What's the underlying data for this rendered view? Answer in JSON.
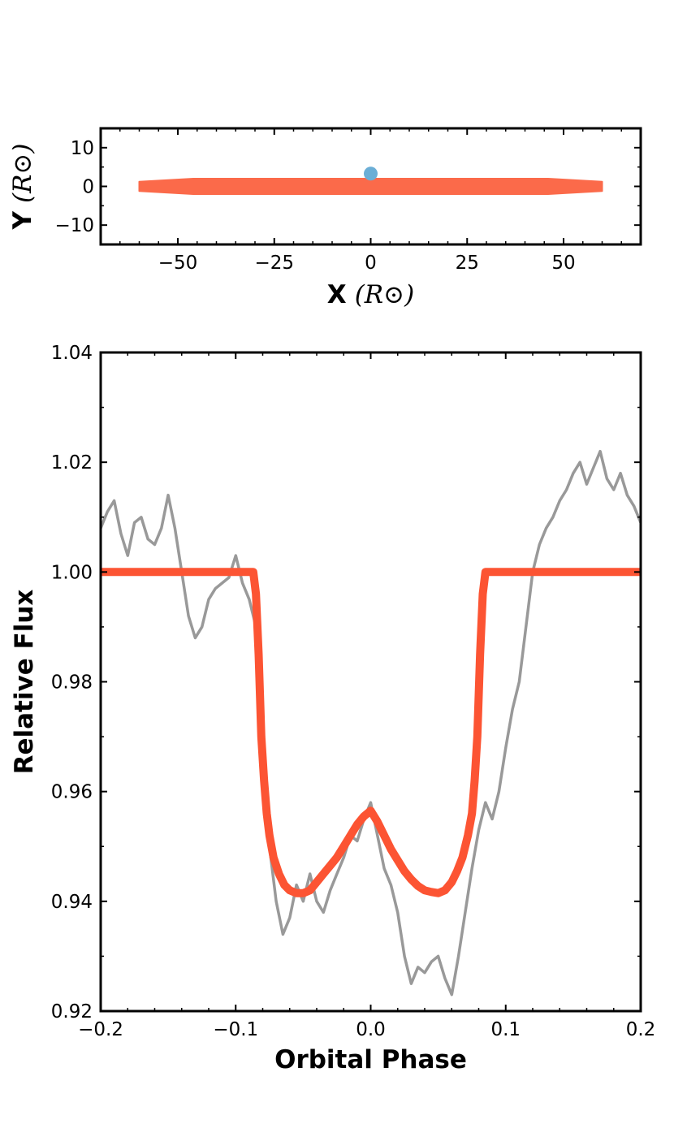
{
  "chart_data": [
    {
      "type": "scatter",
      "xlabel": "X",
      "xlabel_unit": "(R⊙)",
      "ylabel": "Y",
      "ylabel_unit": "(R⊙)",
      "xlim": [
        -70,
        70
      ],
      "ylim": [
        -15,
        15
      ],
      "xticks": [
        -50,
        -25,
        0,
        25,
        50
      ],
      "xtick_labels": [
        "−50",
        "−25",
        "0",
        "25",
        "50"
      ],
      "yticks": [
        -10,
        0,
        10
      ],
      "ytick_labels": [
        "−10",
        "0",
        "10"
      ],
      "grid": false,
      "colors": {
        "ring": "#fb6a4a",
        "star": "#6baed6",
        "axes": "#000000"
      },
      "series": [
        {
          "shape": "ring",
          "x_extent": [
            -60,
            60
          ],
          "y_halfwidth_outer": 1.2,
          "y_halfwidth_inner": 2.0
        },
        {
          "shape": "point",
          "x": 0,
          "y": 3.3
        }
      ]
    },
    {
      "type": "line",
      "xlabel": "Orbital Phase",
      "ylabel": "Relative Flux",
      "xlim": [
        -0.2,
        0.2
      ],
      "ylim": [
        0.92,
        1.04
      ],
      "xticks": [
        -0.2,
        -0.1,
        0.0,
        0.1,
        0.2
      ],
      "xtick_labels": [
        "−0.2",
        "−0.1",
        "0.0",
        "0.1",
        "0.2"
      ],
      "yticks": [
        0.92,
        0.94,
        0.96,
        0.98,
        1.0,
        1.02,
        1.04
      ],
      "ytick_labels": [
        "0.92",
        "0.94",
        "0.96",
        "0.98",
        "1.00",
        "1.02",
        "1.04"
      ],
      "grid": false,
      "colors": {
        "observed": "#999999",
        "model": "#fc5433"
      },
      "series": [
        {
          "style": "observed",
          "x": [
            -0.2,
            -0.195,
            -0.19,
            -0.185,
            -0.18,
            -0.175,
            -0.17,
            -0.165,
            -0.16,
            -0.155,
            -0.15,
            -0.145,
            -0.14,
            -0.135,
            -0.13,
            -0.125,
            -0.12,
            -0.115,
            -0.11,
            -0.105,
            -0.1,
            -0.095,
            -0.09,
            -0.085,
            -0.08,
            -0.075,
            -0.07,
            -0.065,
            -0.06,
            -0.055,
            -0.05,
            -0.045,
            -0.04,
            -0.035,
            -0.03,
            -0.025,
            -0.02,
            -0.015,
            -0.01,
            -0.005,
            0.0,
            0.005,
            0.01,
            0.015,
            0.02,
            0.025,
            0.03,
            0.035,
            0.04,
            0.045,
            0.05,
            0.055,
            0.06,
            0.065,
            0.07,
            0.075,
            0.08,
            0.085,
            0.09,
            0.095,
            0.1,
            0.105,
            0.11,
            0.115,
            0.12,
            0.125,
            0.13,
            0.135,
            0.14,
            0.145,
            0.15,
            0.155,
            0.16,
            0.165,
            0.17,
            0.175,
            0.18,
            0.185,
            0.19,
            0.195,
            0.2
          ],
          "y": [
            1.008,
            1.011,
            1.013,
            1.007,
            1.003,
            1.009,
            1.01,
            1.006,
            1.005,
            1.008,
            1.014,
            1.008,
            1.0,
            0.992,
            0.988,
            0.99,
            0.995,
            0.997,
            0.998,
            0.999,
            1.003,
            0.998,
            0.995,
            0.99,
            0.97,
            0.95,
            0.94,
            0.934,
            0.937,
            0.943,
            0.94,
            0.945,
            0.94,
            0.938,
            0.942,
            0.945,
            0.948,
            0.952,
            0.951,
            0.955,
            0.958,
            0.952,
            0.946,
            0.943,
            0.938,
            0.93,
            0.925,
            0.928,
            0.927,
            0.929,
            0.93,
            0.926,
            0.923,
            0.93,
            0.938,
            0.946,
            0.953,
            0.958,
            0.955,
            0.96,
            0.968,
            0.975,
            0.98,
            0.99,
            1.0,
            1.005,
            1.008,
            1.01,
            1.013,
            1.015,
            1.018,
            1.02,
            1.016,
            1.019,
            1.022,
            1.017,
            1.015,
            1.018,
            1.014,
            1.012,
            1.009
          ]
        },
        {
          "style": "model",
          "x": [
            -0.2,
            -0.087,
            -0.085,
            -0.083,
            -0.081,
            -0.079,
            -0.077,
            -0.075,
            -0.072,
            -0.068,
            -0.064,
            -0.06,
            -0.055,
            -0.05,
            -0.045,
            -0.04,
            -0.035,
            -0.03,
            -0.025,
            -0.02,
            -0.015,
            -0.01,
            -0.005,
            0.0,
            0.005,
            0.01,
            0.015,
            0.02,
            0.025,
            0.03,
            0.035,
            0.04,
            0.045,
            0.05,
            0.055,
            0.06,
            0.064,
            0.068,
            0.072,
            0.075,
            0.077,
            0.079,
            0.081,
            0.083,
            0.085,
            0.087,
            0.2
          ],
          "y": [
            1.0,
            1.0,
            0.996,
            0.985,
            0.97,
            0.962,
            0.956,
            0.952,
            0.948,
            0.945,
            0.943,
            0.942,
            0.9415,
            0.9415,
            0.942,
            0.9435,
            0.945,
            0.9465,
            0.948,
            0.95,
            0.952,
            0.954,
            0.9555,
            0.9565,
            0.9545,
            0.952,
            0.9495,
            0.9475,
            0.9455,
            0.944,
            0.9428,
            0.942,
            0.9417,
            0.9415,
            0.942,
            0.9435,
            0.9455,
            0.948,
            0.952,
            0.956,
            0.962,
            0.97,
            0.985,
            0.996,
            1.0,
            1.0,
            1.0
          ]
        }
      ]
    }
  ]
}
